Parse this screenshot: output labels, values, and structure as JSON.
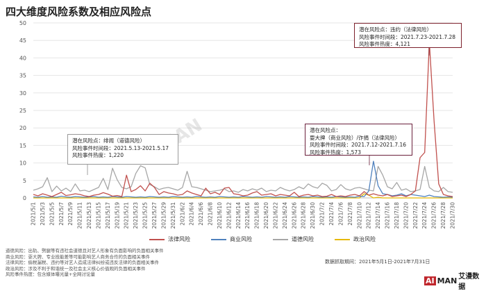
{
  "title": "四大维度风险系数及相应风险点",
  "annotations": [
    {
      "lines": [
        "潜在风险点：绯闻（道德风险）",
        "风险事件时间段：2021.5.13-2021.5.17",
        "风险事件热度：1,220"
      ]
    },
    {
      "lines": [
        "潜在风险点：",
        "耍大牌（商业风险）/诈捐（法律风险）",
        "风险事件时间段：2021.7.12-2021.7.16",
        "风险事件热度：1,573"
      ]
    },
    {
      "lines": [
        "潜在风险点：违约（法律风险）",
        "风险事件时间段：2021.7.23-2021.7.28",
        "风险事件热度：4,121"
      ]
    }
  ],
  "notes": [
    "道德风险：出轨、劈腿等有违社会道德且对艺人形象有负面影响的负面相关事件",
    "商业风险：耍大牌、专业技能差等可能影响艺人商务合作的负面相关事件",
    "法律风险：偷税漏税、违约等对艺人造成法律纠纷或违反法律的负面相关事件",
    "政治风险：涉及不利于和谐统一及社会主义核心价值观的负面相关事件",
    "风险事件热度：包含媒体曝光量+全网讨论量"
  ],
  "source": "数据抓取期间：2021年5月1日-2021年7月31日",
  "logo": {
    "ai": "AI",
    "man": "MAN",
    "cn": "艾漫数据"
  },
  "watermark": "MAN",
  "chart_data": {
    "type": "line",
    "ylim": [
      0,
      50
    ],
    "yticks": [
      0,
      5,
      10,
      15,
      20,
      25,
      30,
      35,
      40,
      45,
      50
    ],
    "xtick_labels": [
      "2021/5/1",
      "2021/5/3",
      "2021/5/5",
      "2021/5/7",
      "2021/5/9",
      "2021/5/11",
      "2021/5/13",
      "2021/5/15",
      "2021/5/17",
      "2021/5/19",
      "2021/5/21",
      "2021/5/23",
      "2021/5/25",
      "2021/5/27",
      "2021/5/29",
      "2021/5/31",
      "2021/6/2",
      "2021/6/4",
      "2021/6/6",
      "2021/6/8",
      "2021/6/10",
      "2021/6/12",
      "2021/6/14",
      "2021/6/16",
      "2021/6/18",
      "2021/6/20",
      "2021/6/22",
      "2021/6/24",
      "2021/6/26",
      "2021/6/28",
      "2021/6/30",
      "2021/7/2",
      "2021/7/4",
      "2021/7/6",
      "2021/7/8",
      "2021/7/10",
      "2021/7/12",
      "2021/7/14",
      "2021/7/16",
      "2021/7/18",
      "2021/7/20",
      "2021/7/22",
      "2021/7/24",
      "2021/7/26",
      "2021/7/28",
      "2021/7/30"
    ],
    "x_start": "2021/5/1",
    "n_points": 91,
    "series": [
      {
        "name": "法律风险",
        "color": "#c0504d",
        "values": [
          1.0,
          0.6,
          1.2,
          0.8,
          0.4,
          1.0,
          1.6,
          0.7,
          0.9,
          1.2,
          1.0,
          0.6,
          0.4,
          0.8,
          1.0,
          1.5,
          1.1,
          0.5,
          0.7,
          0.4,
          6.5,
          1.8,
          2.4,
          3.5,
          2.0,
          4.2,
          3.0,
          1.0,
          1.8,
          1.4,
          1.2,
          0.8,
          1.0,
          2.0,
          1.4,
          1.0,
          0.6,
          2.8,
          1.2,
          1.6,
          1.0,
          2.8,
          3.0,
          1.2,
          1.0,
          0.6,
          0.8,
          1.4,
          1.8,
          0.8,
          1.0,
          1.2,
          0.6,
          1.0,
          0.8,
          0.6,
          1.6,
          0.4,
          0.8,
          1.0,
          0.6,
          0.8,
          0.4,
          0.5,
          1.0,
          0.4,
          0.6,
          0.4,
          0.8,
          1.0,
          0.6,
          1.8,
          0.8,
          1.2,
          0.8,
          0.6,
          1.0,
          0.4,
          0.6,
          0.8,
          0.4,
          1.0,
          2.0,
          11.5,
          13.0,
          44.5,
          22.0,
          4.0,
          1.0,
          0.6,
          0.4
        ]
      },
      {
        "name": "商业风险",
        "color": "#4f81bd",
        "values": [
          0.3,
          0.2,
          0.4,
          0.2,
          0.3,
          0.2,
          0.5,
          0.3,
          0.2,
          0.4,
          0.3,
          0.2,
          0.3,
          0.4,
          0.2,
          0.3,
          0.2,
          0.4,
          0.3,
          0.2,
          0.4,
          0.3,
          0.2,
          0.3,
          0.2,
          0.4,
          0.3,
          0.2,
          0.3,
          0.2,
          0.4,
          0.3,
          0.2,
          0.3,
          0.2,
          0.4,
          0.3,
          0.2,
          0.3,
          0.2,
          0.4,
          0.3,
          0.2,
          0.3,
          0.2,
          0.4,
          0.3,
          0.2,
          0.3,
          0.2,
          0.4,
          0.3,
          0.2,
          0.3,
          0.2,
          0.4,
          0.3,
          0.2,
          0.3,
          0.2,
          0.4,
          0.3,
          0.2,
          0.3,
          0.2,
          0.4,
          0.3,
          0.2,
          0.3,
          0.2,
          0.5,
          0.4,
          2.0,
          10.5,
          3.5,
          1.2,
          1.0,
          0.6,
          0.8,
          1.2,
          0.6,
          1.0,
          0.8,
          0.6,
          0.4,
          0.8,
          0.4,
          0.3,
          0.2,
          0.3,
          0.2
        ]
      },
      {
        "name": "道德风险",
        "color": "#a6a6a6",
        "values": [
          2.2,
          2.6,
          3.2,
          5.8,
          1.8,
          3.4,
          2.0,
          2.8,
          1.8,
          4.0,
          2.0,
          2.2,
          1.8,
          2.4,
          3.0,
          5.6,
          2.4,
          8.5,
          5.2,
          3.0,
          2.6,
          3.2,
          7.0,
          9.2,
          8.6,
          3.8,
          3.2,
          2.4,
          2.8,
          3.0,
          2.6,
          2.2,
          3.0,
          7.6,
          3.2,
          3.0,
          2.6,
          2.2,
          1.8,
          2.0,
          2.2,
          2.6,
          1.8,
          2.0,
          1.6,
          2.4,
          2.0,
          2.6,
          2.2,
          2.8,
          1.8,
          2.2,
          2.0,
          3.0,
          2.4,
          2.0,
          2.4,
          3.2,
          2.6,
          4.0,
          3.2,
          2.8,
          4.2,
          3.6,
          2.0,
          2.4,
          3.8,
          2.6,
          2.2,
          2.8,
          3.0,
          2.6,
          2.2,
          2.0,
          9.0,
          6.5,
          3.2,
          2.6,
          4.4,
          2.2,
          2.6,
          1.8,
          2.0,
          2.4,
          9.0,
          3.0,
          2.0,
          1.8,
          3.0,
          1.8,
          1.6
        ]
      },
      {
        "name": "政治风险",
        "color": "#e6b800",
        "values": [
          0.0,
          0.0,
          0.0,
          0.0,
          0.0,
          0.0,
          0.0,
          0.0,
          0.0,
          0.0,
          0.0,
          0.0,
          0.0,
          0.0,
          0.0,
          0.0,
          0.0,
          0.0,
          0.0,
          0.0,
          0.0,
          0.0,
          0.0,
          0.0,
          0.0,
          0.0,
          0.0,
          0.0,
          0.0,
          0.0,
          0.0,
          0.0,
          0.0,
          0.0,
          0.0,
          0.0,
          0.0,
          0.0,
          0.0,
          0.0,
          0.0,
          0.0,
          0.0,
          0.0,
          0.0,
          0.0,
          0.0,
          0.0,
          0.0,
          0.0,
          0.0,
          0.0,
          0.0,
          0.0,
          0.0,
          0.0,
          0.0,
          0.0,
          0.0,
          0.0,
          0.0,
          0.0,
          0.0,
          0.0,
          0.0,
          0.0,
          0.0,
          0.0,
          0.0,
          0.0,
          0.0,
          1.2,
          0.8,
          0.0,
          0.2,
          0.0,
          0.0,
          0.0,
          0.0,
          0.0,
          0.0,
          0.0,
          0.0,
          0.0,
          0.0,
          0.0,
          0.0,
          0.0,
          0.0,
          0.0,
          0.0
        ]
      }
    ]
  }
}
